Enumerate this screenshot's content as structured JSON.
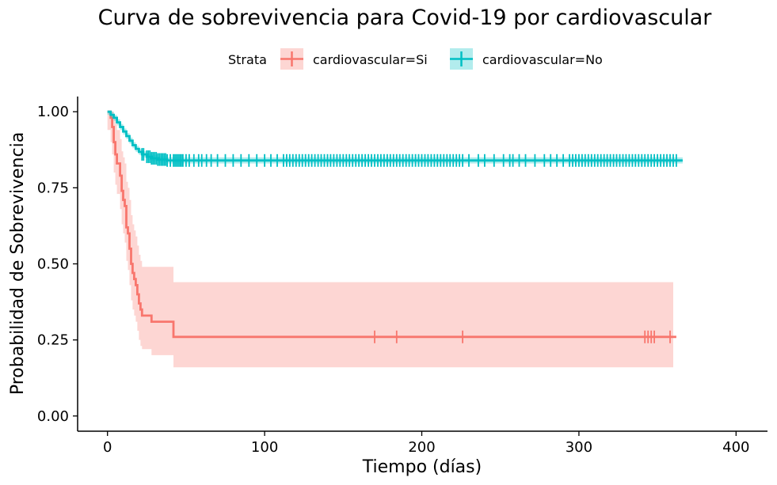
{
  "chart_data": {
    "type": "line",
    "title": "Curva de sobrevivencia para Covid-19 por cardiovascular",
    "xlabel": "Tiempo (días)",
    "ylabel": "Probabilidad de Sobrevivencia",
    "xlim": [
      -19,
      420
    ],
    "ylim": [
      -0.05,
      1.05
    ],
    "x_ticks": [
      0,
      100,
      200,
      300,
      400
    ],
    "y_ticks": [
      0.0,
      0.25,
      0.5,
      0.75,
      1.0
    ],
    "x_tick_labels": [
      "0",
      "100",
      "200",
      "300",
      "400"
    ],
    "y_tick_labels": [
      "0.00",
      "0.25",
      "0.50",
      "0.75",
      "1.00"
    ],
    "grid": false,
    "legend": {
      "position": "top",
      "title": "Strata",
      "items": [
        "cardiovascular=Si",
        "cardiovascular=No"
      ]
    },
    "series": [
      {
        "name": "cardiovascular=Si",
        "color": "#F8766D",
        "steps": [
          [
            0,
            1.0
          ],
          [
            2,
            0.98
          ],
          [
            3,
            0.95
          ],
          [
            4,
            0.9
          ],
          [
            5,
            0.86
          ],
          [
            6,
            0.83
          ],
          [
            8,
            0.79
          ],
          [
            9,
            0.74
          ],
          [
            10,
            0.71
          ],
          [
            11,
            0.69
          ],
          [
            12,
            0.62
          ],
          [
            13,
            0.6
          ],
          [
            14,
            0.55
          ],
          [
            15,
            0.5
          ],
          [
            16,
            0.47
          ],
          [
            17,
            0.45
          ],
          [
            18,
            0.43
          ],
          [
            19,
            0.4
          ],
          [
            20,
            0.37
          ],
          [
            21,
            0.35
          ],
          [
            22,
            0.33
          ],
          [
            27,
            0.33
          ],
          [
            28,
            0.31
          ],
          [
            41,
            0.31
          ],
          [
            42,
            0.26
          ],
          [
            362,
            0.26
          ]
        ],
        "ci": [
          [
            0,
            0.94,
            1.0
          ],
          [
            2,
            0.9,
            1.0
          ],
          [
            3,
            0.86,
            1.0
          ],
          [
            4,
            0.8,
            0.98
          ],
          [
            5,
            0.76,
            0.96
          ],
          [
            6,
            0.73,
            0.94
          ],
          [
            8,
            0.68,
            0.91
          ],
          [
            9,
            0.63,
            0.87
          ],
          [
            10,
            0.6,
            0.85
          ],
          [
            11,
            0.57,
            0.83
          ],
          [
            12,
            0.51,
            0.77
          ],
          [
            13,
            0.48,
            0.75
          ],
          [
            14,
            0.43,
            0.71
          ],
          [
            15,
            0.38,
            0.66
          ],
          [
            16,
            0.35,
            0.63
          ],
          [
            17,
            0.33,
            0.61
          ],
          [
            18,
            0.31,
            0.59
          ],
          [
            19,
            0.28,
            0.56
          ],
          [
            20,
            0.25,
            0.53
          ],
          [
            21,
            0.23,
            0.51
          ],
          [
            22,
            0.22,
            0.49
          ],
          [
            28,
            0.2,
            0.49
          ],
          [
            42,
            0.16,
            0.44
          ],
          [
            360,
            0.16,
            0.44
          ]
        ],
        "censor_x": [
          170,
          184,
          226,
          342,
          344,
          346,
          348,
          358
        ]
      },
      {
        "name": "cardiovascular=No",
        "color": "#00BFC4",
        "steps": [
          [
            0,
            1.0
          ],
          [
            2,
            0.99
          ],
          [
            4,
            0.98
          ],
          [
            6,
            0.965
          ],
          [
            8,
            0.95
          ],
          [
            10,
            0.935
          ],
          [
            12,
            0.92
          ],
          [
            14,
            0.905
          ],
          [
            16,
            0.89
          ],
          [
            18,
            0.878
          ],
          [
            20,
            0.868
          ],
          [
            22,
            0.86
          ],
          [
            25,
            0.852
          ],
          [
            28,
            0.847
          ],
          [
            32,
            0.843
          ],
          [
            38,
            0.84
          ],
          [
            45,
            0.84
          ],
          [
            366,
            0.84
          ]
        ],
        "ci": [
          [
            0,
            0.99,
            1.0
          ],
          [
            2,
            0.98,
            1.0
          ],
          [
            4,
            0.97,
            0.99
          ],
          [
            6,
            0.955,
            0.975
          ],
          [
            8,
            0.94,
            0.96
          ],
          [
            10,
            0.925,
            0.945
          ],
          [
            12,
            0.91,
            0.93
          ],
          [
            14,
            0.895,
            0.915
          ],
          [
            16,
            0.88,
            0.9
          ],
          [
            18,
            0.868,
            0.888
          ],
          [
            20,
            0.858,
            0.878
          ],
          [
            22,
            0.85,
            0.87
          ],
          [
            25,
            0.842,
            0.862
          ],
          [
            28,
            0.837,
            0.857
          ],
          [
            32,
            0.833,
            0.853
          ],
          [
            38,
            0.83,
            0.85
          ],
          [
            45,
            0.83,
            0.85
          ],
          [
            366,
            0.83,
            0.85
          ]
        ],
        "censor_x": [
          22,
          23,
          25,
          26,
          27,
          28,
          29,
          30,
          31,
          32,
          33,
          34,
          35,
          36,
          37,
          38,
          40,
          42,
          43,
          44,
          45,
          46,
          47,
          48,
          50,
          52,
          55,
          58,
          60,
          63,
          66,
          70,
          75,
          80,
          85,
          90,
          95,
          100,
          104,
          108,
          112,
          114,
          116,
          118,
          120,
          122,
          124,
          126,
          128,
          130,
          132,
          134,
          136,
          138,
          140,
          142,
          144,
          146,
          148,
          150,
          152,
          154,
          156,
          158,
          160,
          162,
          164,
          166,
          168,
          170,
          172,
          174,
          176,
          178,
          180,
          182,
          184,
          186,
          188,
          190,
          192,
          194,
          196,
          198,
          200,
          202,
          204,
          206,
          208,
          210,
          212,
          214,
          216,
          218,
          220,
          222,
          224,
          226,
          230,
          236,
          240,
          246,
          252,
          256,
          258,
          262,
          266,
          272,
          278,
          282,
          286,
          290,
          294,
          296,
          298,
          300,
          302,
          304,
          306,
          308,
          310,
          312,
          314,
          316,
          318,
          320,
          322,
          324,
          326,
          328,
          330,
          332,
          334,
          336,
          338,
          340,
          342,
          344,
          346,
          348,
          350,
          352,
          354,
          356,
          358,
          360,
          362
        ]
      }
    ]
  }
}
